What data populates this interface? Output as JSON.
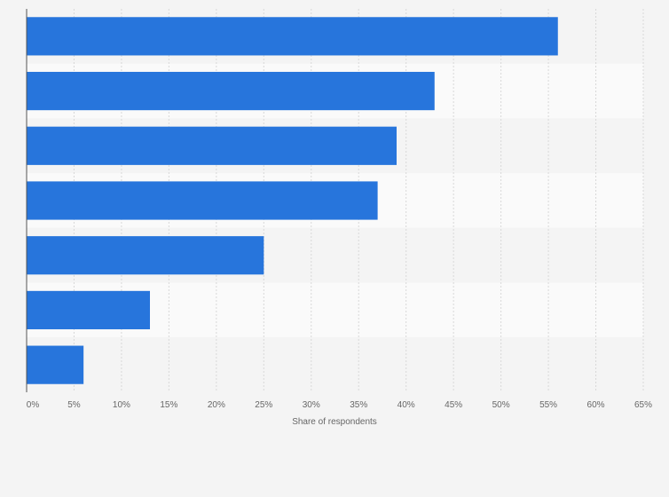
{
  "chart_data": {
    "type": "bar",
    "orientation": "horizontal",
    "categories": [
      "",
      "",
      "",
      "",
      "",
      "",
      ""
    ],
    "values": [
      56,
      43,
      39,
      37,
      25,
      13,
      6
    ],
    "xlabel": "Share of respondents",
    "xlim": [
      0,
      65
    ],
    "xticks": [
      "0%",
      "5%",
      "10%",
      "15%",
      "20%",
      "25%",
      "30%",
      "35%",
      "40%",
      "45%",
      "50%",
      "55%",
      "60%",
      "65%"
    ],
    "grid": true,
    "legend": "none",
    "bar_color": "#2775dc",
    "band_colors": [
      "#f4f4f4",
      "#fafafa"
    ]
  }
}
